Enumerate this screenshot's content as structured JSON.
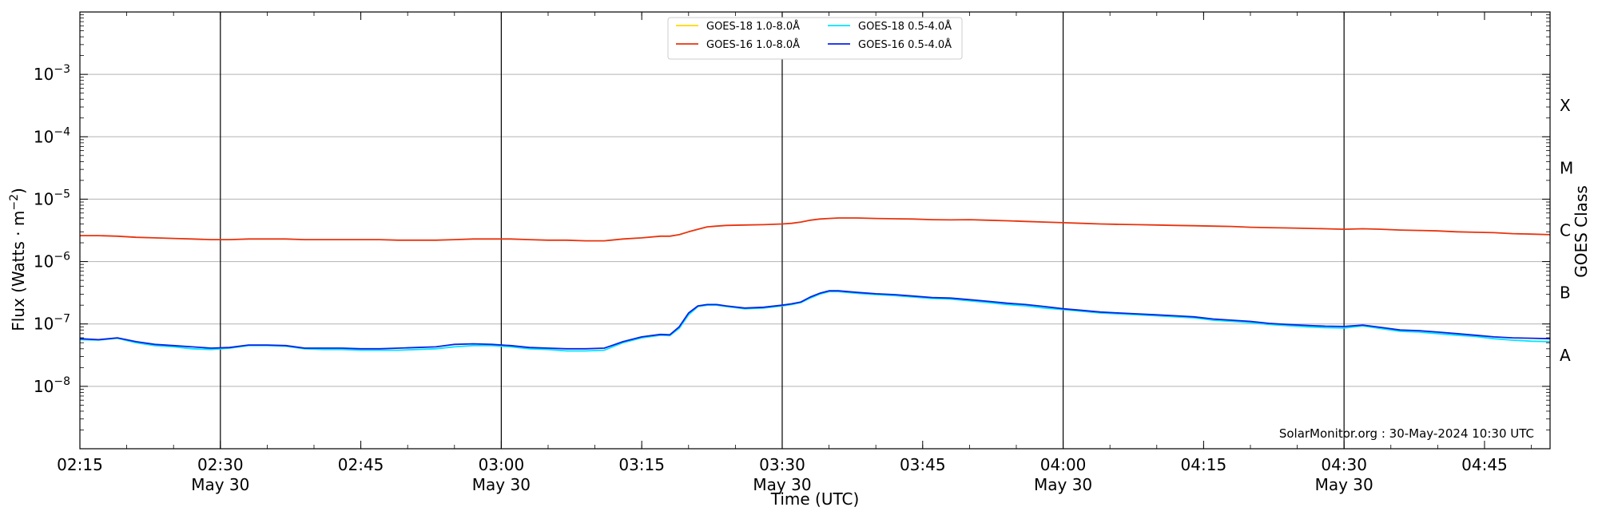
{
  "chart_data": {
    "type": "line",
    "xlabel": "Time (UTC)",
    "ylabel": "Flux (Watts · m⁻²)",
    "y2label": "GOES Class",
    "yscale": "log",
    "ylim": [
      1e-09,
      0.01
    ],
    "xlim": [
      "02:15",
      "04:52"
    ],
    "x_ticks": [
      {
        "t": "02:15",
        "label": "02:15",
        "date": ""
      },
      {
        "t": "02:30",
        "label": "02:30",
        "date": "May 30"
      },
      {
        "t": "02:45",
        "label": "02:45",
        "date": ""
      },
      {
        "t": "03:00",
        "label": "03:00",
        "date": "May 30"
      },
      {
        "t": "03:15",
        "label": "03:15",
        "date": ""
      },
      {
        "t": "03:30",
        "label": "03:30",
        "date": "May 30"
      },
      {
        "t": "03:45",
        "label": "03:45",
        "date": ""
      },
      {
        "t": "04:00",
        "label": "04:00",
        "date": "May 30"
      },
      {
        "t": "04:15",
        "label": "04:15",
        "date": ""
      },
      {
        "t": "04:30",
        "label": "04:30",
        "date": "May 30"
      },
      {
        "t": "04:45",
        "label": "04:45",
        "date": ""
      }
    ],
    "y_ticks": [
      {
        "exp": -3,
        "label": "10",
        "sup": "−3"
      },
      {
        "exp": -4,
        "label": "10",
        "sup": "−4"
      },
      {
        "exp": -5,
        "label": "10",
        "sup": "−5"
      },
      {
        "exp": -6,
        "label": "10",
        "sup": "−6"
      },
      {
        "exp": -7,
        "label": "10",
        "sup": "−7"
      },
      {
        "exp": -8,
        "label": "10",
        "sup": "−8"
      }
    ],
    "goes_classes": [
      {
        "label": "X",
        "value": 0.000316
      },
      {
        "label": "M",
        "value": 3.16e-05
      },
      {
        "label": "C",
        "value": 3.16e-06
      },
      {
        "label": "B",
        "value": 3.16e-07
      },
      {
        "label": "A",
        "value": 3.16e-08
      }
    ],
    "day_lines": [
      "02:30",
      "03:00",
      "03:30",
      "04:00",
      "04:30"
    ],
    "grid": "horizontal",
    "legend_position": "top-center",
    "annotation": "SolarMonitor.org : 30-May-2024 10:30 UTC",
    "series": [
      {
        "name": "GOES-18 1.0-8.0Å",
        "color": "#ffd700",
        "x": [
          "02:15",
          "04:52"
        ],
        "values": [
          null,
          null
        ]
      },
      {
        "name": "GOES-16 1.0-8.0Å",
        "color": "#e8330e",
        "x": [
          "02:15",
          "02:17",
          "02:19",
          "02:21",
          "02:23",
          "02:25",
          "02:27",
          "02:29",
          "02:31",
          "02:33",
          "02:35",
          "02:37",
          "02:39",
          "02:41",
          "02:43",
          "02:45",
          "02:47",
          "02:49",
          "02:51",
          "02:53",
          "02:55",
          "02:57",
          "02:59",
          "03:01",
          "03:03",
          "03:05",
          "03:07",
          "03:09",
          "03:11",
          "03:13",
          "03:15",
          "03:17",
          "03:18",
          "03:19",
          "03:20",
          "03:21",
          "03:22",
          "03:23",
          "03:24",
          "03:26",
          "03:28",
          "03:30",
          "03:31",
          "03:32",
          "03:33",
          "03:34",
          "03:35",
          "03:36",
          "03:38",
          "03:40",
          "03:42",
          "03:44",
          "03:46",
          "03:48",
          "03:50",
          "03:52",
          "03:54",
          "03:56",
          "03:58",
          "04:00",
          "04:02",
          "04:04",
          "04:06",
          "04:08",
          "04:10",
          "04:12",
          "04:14",
          "04:16",
          "04:18",
          "04:20",
          "04:22",
          "04:24",
          "04:26",
          "04:28",
          "04:30",
          "04:32",
          "04:34",
          "04:36",
          "04:38",
          "04:40",
          "04:42",
          "04:44",
          "04:46",
          "04:48",
          "04:50",
          "04:52"
        ],
        "values": [
          2.6e-06,
          2.6e-06,
          2.55e-06,
          2.45e-06,
          2.4e-06,
          2.35e-06,
          2.3e-06,
          2.25e-06,
          2.25e-06,
          2.3e-06,
          2.3e-06,
          2.3e-06,
          2.25e-06,
          2.25e-06,
          2.25e-06,
          2.25e-06,
          2.25e-06,
          2.2e-06,
          2.2e-06,
          2.2e-06,
          2.25e-06,
          2.3e-06,
          2.3e-06,
          2.3e-06,
          2.25e-06,
          2.2e-06,
          2.2e-06,
          2.15e-06,
          2.15e-06,
          2.3e-06,
          2.4e-06,
          2.55e-06,
          2.55e-06,
          2.7e-06,
          3e-06,
          3.3e-06,
          3.6e-06,
          3.7e-06,
          3.8e-06,
          3.85e-06,
          3.9e-06,
          4e-06,
          4.1e-06,
          4.3e-06,
          4.6e-06,
          4.8e-06,
          4.9e-06,
          5e-06,
          5e-06,
          4.9e-06,
          4.85e-06,
          4.8e-06,
          4.7e-06,
          4.65e-06,
          4.7e-06,
          4.6e-06,
          4.5e-06,
          4.4e-06,
          4.3e-06,
          4.2e-06,
          4.1e-06,
          4e-06,
          3.95e-06,
          3.9e-06,
          3.85e-06,
          3.8e-06,
          3.75e-06,
          3.7e-06,
          3.65e-06,
          3.55e-06,
          3.5e-06,
          3.45e-06,
          3.4e-06,
          3.35e-06,
          3.3e-06,
          3.35e-06,
          3.3e-06,
          3.2e-06,
          3.15e-06,
          3.1e-06,
          3e-06,
          2.95e-06,
          2.9e-06,
          2.8e-06,
          2.75e-06,
          2.7e-06
        ]
      },
      {
        "name": "GOES-18 0.5-4.0Å",
        "color": "#00e5ff",
        "x": [
          "02:15",
          "02:17",
          "02:19",
          "02:21",
          "02:23",
          "02:25",
          "02:27",
          "02:29",
          "02:31",
          "02:33",
          "02:35",
          "02:37",
          "02:39",
          "02:41",
          "02:43",
          "02:45",
          "02:47",
          "02:49",
          "02:51",
          "02:53",
          "02:55",
          "02:57",
          "02:59",
          "03:01",
          "03:03",
          "03:05",
          "03:07",
          "03:09",
          "03:11",
          "03:13",
          "03:15",
          "03:17",
          "03:18",
          "03:19",
          "03:20",
          "03:21",
          "03:22",
          "03:23",
          "03:24",
          "03:26",
          "03:28",
          "03:30",
          "03:31",
          "03:32",
          "03:33",
          "03:34",
          "03:35",
          "03:36",
          "03:38",
          "03:40",
          "03:42",
          "03:44",
          "03:46",
          "03:48",
          "03:50",
          "03:52",
          "03:54",
          "03:56",
          "03:58",
          "04:00",
          "04:02",
          "04:04",
          "04:06",
          "04:08",
          "04:10",
          "04:12",
          "04:14",
          "04:16",
          "04:18",
          "04:20",
          "04:22",
          "04:24",
          "04:26",
          "04:28",
          "04:30",
          "04:32",
          "04:34",
          "04:36",
          "04:38",
          "04:40",
          "04:42",
          "04:44",
          "04:46",
          "04:48",
          "04:50",
          "04:52"
        ],
        "values": [
          5.6e-08,
          5.5e-08,
          5.9e-08,
          5e-08,
          4.5e-08,
          4.3e-08,
          4e-08,
          3.9e-08,
          4.1e-08,
          4.5e-08,
          4.5e-08,
          4.4e-08,
          4e-08,
          3.9e-08,
          3.9e-08,
          3.8e-08,
          3.8e-08,
          3.8e-08,
          3.9e-08,
          4e-08,
          4.3e-08,
          4.5e-08,
          4.5e-08,
          4.3e-08,
          4e-08,
          3.9e-08,
          3.7e-08,
          3.7e-08,
          3.8e-08,
          5e-08,
          6e-08,
          6.6e-08,
          6.5e-08,
          8.5e-08,
          1.4e-07,
          1.9e-07,
          2e-07,
          2e-07,
          1.9e-07,
          1.75e-07,
          1.8e-07,
          1.95e-07,
          2.05e-07,
          2.2e-07,
          2.6e-07,
          3e-07,
          3.3e-07,
          3.3e-07,
          3.1e-07,
          2.95e-07,
          2.85e-07,
          2.7e-07,
          2.55e-07,
          2.5e-07,
          2.35e-07,
          2.2e-07,
          2.05e-07,
          1.95e-07,
          1.8e-07,
          1.7e-07,
          1.6e-07,
          1.5e-07,
          1.45e-07,
          1.4e-07,
          1.35e-07,
          1.3e-07,
          1.25e-07,
          1.15e-07,
          1.1e-07,
          1.05e-07,
          9.8e-08,
          9.4e-08,
          9e-08,
          8.7e-08,
          8.6e-08,
          9.3e-08,
          8.4e-08,
          7.6e-08,
          7.4e-08,
          7e-08,
          6.6e-08,
          6.3e-08,
          5.8e-08,
          5.5e-08,
          5.3e-08,
          5.2e-08
        ]
      },
      {
        "name": "GOES-16 0.5-4.0Å",
        "color": "#0a22e6",
        "x": [
          "02:15",
          "02:17",
          "02:19",
          "02:21",
          "02:23",
          "02:25",
          "02:27",
          "02:29",
          "02:31",
          "02:33",
          "02:35",
          "02:37",
          "02:39",
          "02:41",
          "02:43",
          "02:45",
          "02:47",
          "02:49",
          "02:51",
          "02:53",
          "02:55",
          "02:57",
          "02:59",
          "03:01",
          "03:03",
          "03:05",
          "03:07",
          "03:09",
          "03:11",
          "03:13",
          "03:15",
          "03:17",
          "03:18",
          "03:19",
          "03:20",
          "03:21",
          "03:22",
          "03:23",
          "03:24",
          "03:26",
          "03:28",
          "03:30",
          "03:31",
          "03:32",
          "03:33",
          "03:34",
          "03:35",
          "03:36",
          "03:38",
          "03:40",
          "03:42",
          "03:44",
          "03:46",
          "03:48",
          "03:50",
          "03:52",
          "03:54",
          "03:56",
          "03:58",
          "04:00",
          "04:02",
          "04:04",
          "04:06",
          "04:08",
          "04:10",
          "04:12",
          "04:14",
          "04:16",
          "04:18",
          "04:20",
          "04:22",
          "04:24",
          "04:26",
          "04:28",
          "04:30",
          "04:32",
          "04:34",
          "04:36",
          "04:38",
          "04:40",
          "04:42",
          "04:44",
          "04:46",
          "04:48",
          "04:50",
          "04:52"
        ],
        "values": [
          5.8e-08,
          5.6e-08,
          6e-08,
          5.2e-08,
          4.7e-08,
          4.5e-08,
          4.3e-08,
          4.1e-08,
          4.2e-08,
          4.6e-08,
          4.6e-08,
          4.5e-08,
          4.1e-08,
          4.1e-08,
          4.1e-08,
          4e-08,
          4e-08,
          4.1e-08,
          4.2e-08,
          4.3e-08,
          4.7e-08,
          4.8e-08,
          4.7e-08,
          4.5e-08,
          4.2e-08,
          4.1e-08,
          4e-08,
          4e-08,
          4.1e-08,
          5.2e-08,
          6.2e-08,
          6.8e-08,
          6.7e-08,
          9e-08,
          1.5e-07,
          1.95e-07,
          2.05e-07,
          2.05e-07,
          1.95e-07,
          1.8e-07,
          1.85e-07,
          2e-07,
          2.1e-07,
          2.25e-07,
          2.7e-07,
          3.1e-07,
          3.4e-07,
          3.4e-07,
          3.2e-07,
          3.05e-07,
          2.95e-07,
          2.8e-07,
          2.65e-07,
          2.6e-07,
          2.45e-07,
          2.3e-07,
          2.15e-07,
          2.05e-07,
          1.9e-07,
          1.75e-07,
          1.65e-07,
          1.55e-07,
          1.5e-07,
          1.45e-07,
          1.4e-07,
          1.35e-07,
          1.3e-07,
          1.2e-07,
          1.15e-07,
          1.1e-07,
          1.02e-07,
          9.8e-08,
          9.5e-08,
          9.2e-08,
          9.1e-08,
          9.6e-08,
          8.8e-08,
          8e-08,
          7.8e-08,
          7.4e-08,
          7e-08,
          6.6e-08,
          6.2e-08,
          6e-08,
          5.9e-08,
          5.8e-08
        ]
      }
    ]
  }
}
